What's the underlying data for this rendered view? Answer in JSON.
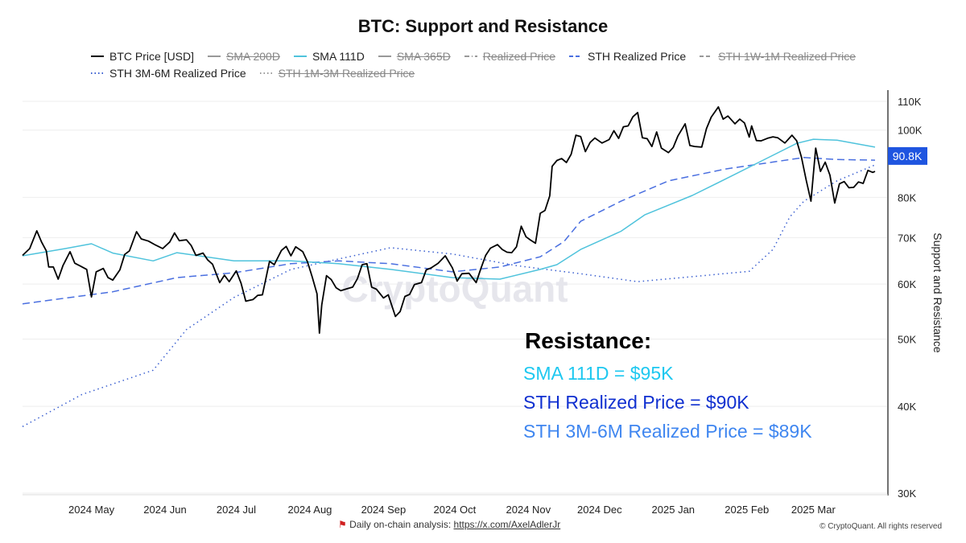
{
  "chart_data": {
    "type": "line",
    "title": "BTC: Support and Resistance",
    "ylabel": "Support and Resistance",
    "yscale": "log",
    "ylim": [
      30000,
      115000
    ],
    "xlim": [
      "2024-04-02",
      "2025-03-31"
    ],
    "grid": "horizontal",
    "legend_position": "top",
    "y_ticks": [
      {
        "v": 30000,
        "label": "30K"
      },
      {
        "v": 40000,
        "label": "40K"
      },
      {
        "v": 50000,
        "label": "50K"
      },
      {
        "v": 60000,
        "label": "60K"
      },
      {
        "v": 70000,
        "label": "70K"
      },
      {
        "v": 80000,
        "label": "80K"
      },
      {
        "v": 100000,
        "label": "100K"
      },
      {
        "v": 110000,
        "label": "110K"
      }
    ],
    "x_ticks": [
      {
        "d": "2024-05-01",
        "label": "2024 May"
      },
      {
        "d": "2024-06-01",
        "label": "2024 Jun"
      },
      {
        "d": "2024-07-01",
        "label": "2024 Jul"
      },
      {
        "d": "2024-08-01",
        "label": "2024 Aug"
      },
      {
        "d": "2024-09-01",
        "label": "2024 Sep"
      },
      {
        "d": "2024-10-01",
        "label": "2024 Oct"
      },
      {
        "d": "2024-11-01",
        "label": "2024 Nov"
      },
      {
        "d": "2024-12-01",
        "label": "2024 Dec"
      },
      {
        "d": "2025-01-01",
        "label": "2025 Jan"
      },
      {
        "d": "2025-02-01",
        "label": "2025 Feb"
      },
      {
        "d": "2025-03-01",
        "label": "2025 Mar"
      }
    ],
    "current_value_badge": {
      "value": 90800,
      "label": "90.8K",
      "color": "#1f55e0"
    },
    "series": [
      {
        "name": "BTC Price [USD]",
        "color": "#000000",
        "style": "solid",
        "visible": true,
        "points": [
          [
            "2024-04-02",
            66000
          ],
          [
            "2024-04-05",
            67500
          ],
          [
            "2024-04-08",
            71600
          ],
          [
            "2024-04-10",
            69000
          ],
          [
            "2024-04-12",
            67000
          ],
          [
            "2024-04-13",
            63500
          ],
          [
            "2024-04-15",
            63500
          ],
          [
            "2024-04-17",
            61000
          ],
          [
            "2024-04-19",
            63800
          ],
          [
            "2024-04-22",
            66800
          ],
          [
            "2024-04-24",
            64300
          ],
          [
            "2024-04-26",
            63800
          ],
          [
            "2024-04-29",
            63000
          ],
          [
            "2024-05-01",
            57500
          ],
          [
            "2024-05-03",
            62500
          ],
          [
            "2024-05-06",
            63200
          ],
          [
            "2024-05-08",
            61300
          ],
          [
            "2024-05-10",
            60800
          ],
          [
            "2024-05-13",
            62900
          ],
          [
            "2024-05-15",
            66200
          ],
          [
            "2024-05-17",
            67000
          ],
          [
            "2024-05-20",
            71400
          ],
          [
            "2024-05-22",
            69700
          ],
          [
            "2024-05-25",
            69200
          ],
          [
            "2024-05-28",
            68300
          ],
          [
            "2024-05-31",
            67500
          ],
          [
            "2024-06-03",
            69000
          ],
          [
            "2024-06-05",
            71100
          ],
          [
            "2024-06-07",
            69300
          ],
          [
            "2024-06-10",
            69500
          ],
          [
            "2024-06-12",
            68200
          ],
          [
            "2024-06-14",
            66000
          ],
          [
            "2024-06-17",
            66500
          ],
          [
            "2024-06-19",
            65000
          ],
          [
            "2024-06-21",
            64100
          ],
          [
            "2024-06-24",
            60300
          ],
          [
            "2024-06-26",
            61800
          ],
          [
            "2024-06-28",
            60500
          ],
          [
            "2024-07-01",
            62700
          ],
          [
            "2024-07-03",
            60200
          ],
          [
            "2024-07-05",
            56700
          ],
          [
            "2024-07-08",
            57000
          ],
          [
            "2024-07-10",
            57800
          ],
          [
            "2024-07-12",
            57900
          ],
          [
            "2024-07-15",
            64700
          ],
          [
            "2024-07-17",
            64000
          ],
          [
            "2024-07-20",
            67100
          ],
          [
            "2024-07-22",
            68000
          ],
          [
            "2024-07-24",
            65900
          ],
          [
            "2024-07-26",
            67900
          ],
          [
            "2024-07-29",
            66800
          ],
          [
            "2024-07-31",
            64600
          ],
          [
            "2024-08-02",
            61400
          ],
          [
            "2024-08-04",
            58100
          ],
          [
            "2024-08-05",
            51000
          ],
          [
            "2024-08-06",
            56000
          ],
          [
            "2024-08-08",
            61700
          ],
          [
            "2024-08-10",
            60900
          ],
          [
            "2024-08-12",
            59300
          ],
          [
            "2024-08-14",
            58700
          ],
          [
            "2024-08-16",
            59000
          ],
          [
            "2024-08-19",
            59400
          ],
          [
            "2024-08-21",
            61100
          ],
          [
            "2024-08-23",
            64000
          ],
          [
            "2024-08-25",
            64200
          ],
          [
            "2024-08-27",
            59400
          ],
          [
            "2024-08-29",
            59000
          ],
          [
            "2024-09-01",
            57300
          ],
          [
            "2024-09-03",
            57900
          ],
          [
            "2024-09-06",
            53900
          ],
          [
            "2024-09-08",
            54800
          ],
          [
            "2024-09-10",
            57600
          ],
          [
            "2024-09-12",
            58000
          ],
          [
            "2024-09-14",
            59900
          ],
          [
            "2024-09-17",
            60300
          ],
          [
            "2024-09-19",
            62900
          ],
          [
            "2024-09-21",
            63300
          ],
          [
            "2024-09-24",
            64300
          ],
          [
            "2024-09-27",
            65900
          ],
          [
            "2024-09-30",
            63300
          ],
          [
            "2024-10-02",
            60600
          ],
          [
            "2024-10-04",
            62100
          ],
          [
            "2024-10-07",
            62200
          ],
          [
            "2024-10-10",
            60300
          ],
          [
            "2024-10-12",
            63200
          ],
          [
            "2024-10-14",
            66000
          ],
          [
            "2024-10-16",
            67600
          ],
          [
            "2024-10-19",
            68400
          ],
          [
            "2024-10-21",
            67300
          ],
          [
            "2024-10-23",
            66700
          ],
          [
            "2024-10-25",
            66600
          ],
          [
            "2024-10-27",
            67900
          ],
          [
            "2024-10-29",
            72700
          ],
          [
            "2024-10-31",
            70200
          ],
          [
            "2024-11-02",
            69400
          ],
          [
            "2024-11-04",
            68700
          ],
          [
            "2024-11-06",
            75900
          ],
          [
            "2024-11-08",
            76600
          ],
          [
            "2024-11-10",
            80400
          ],
          [
            "2024-11-11",
            88700
          ],
          [
            "2024-11-13",
            90400
          ],
          [
            "2024-11-15",
            91000
          ],
          [
            "2024-11-17",
            89800
          ],
          [
            "2024-11-19",
            92300
          ],
          [
            "2024-11-21",
            98300
          ],
          [
            "2024-11-23",
            97900
          ],
          [
            "2024-11-25",
            93100
          ],
          [
            "2024-11-27",
            96000
          ],
          [
            "2024-11-29",
            97400
          ],
          [
            "2024-12-02",
            95800
          ],
          [
            "2024-12-05",
            96900
          ],
          [
            "2024-12-07",
            99800
          ],
          [
            "2024-12-09",
            97300
          ],
          [
            "2024-12-11",
            101100
          ],
          [
            "2024-12-13",
            101400
          ],
          [
            "2024-12-15",
            104500
          ],
          [
            "2024-12-17",
            106000
          ],
          [
            "2024-12-19",
            97500
          ],
          [
            "2024-12-21",
            97200
          ],
          [
            "2024-12-23",
            94700
          ],
          [
            "2024-12-25",
            99400
          ],
          [
            "2024-12-27",
            94200
          ],
          [
            "2024-12-30",
            92800
          ],
          [
            "2025-01-01",
            94400
          ],
          [
            "2025-01-03",
            98100
          ],
          [
            "2025-01-06",
            102100
          ],
          [
            "2025-01-08",
            95000
          ],
          [
            "2025-01-10",
            94700
          ],
          [
            "2025-01-13",
            94500
          ],
          [
            "2025-01-15",
            100500
          ],
          [
            "2025-01-17",
            104400
          ],
          [
            "2025-01-20",
            108000
          ],
          [
            "2025-01-22",
            103700
          ],
          [
            "2025-01-24",
            104800
          ],
          [
            "2025-01-27",
            102100
          ],
          [
            "2025-01-29",
            103700
          ],
          [
            "2025-01-31",
            102400
          ],
          [
            "2025-02-02",
            97700
          ],
          [
            "2025-02-03",
            101400
          ],
          [
            "2025-02-05",
            96600
          ],
          [
            "2025-02-07",
            96500
          ],
          [
            "2025-02-10",
            97400
          ],
          [
            "2025-02-12",
            97800
          ],
          [
            "2025-02-14",
            97500
          ],
          [
            "2025-02-17",
            95800
          ],
          [
            "2025-02-20",
            98300
          ],
          [
            "2025-02-22",
            96500
          ],
          [
            "2025-02-24",
            91400
          ],
          [
            "2025-02-26",
            84700
          ],
          [
            "2025-02-28",
            79000
          ],
          [
            "2025-03-02",
            94200
          ],
          [
            "2025-03-04",
            87200
          ],
          [
            "2025-03-06",
            89900
          ],
          [
            "2025-03-08",
            86100
          ],
          [
            "2025-03-10",
            78500
          ],
          [
            "2025-03-12",
            83700
          ],
          [
            "2025-03-14",
            84300
          ],
          [
            "2025-03-16",
            82600
          ],
          [
            "2025-03-18",
            82700
          ],
          [
            "2025-03-20",
            84200
          ],
          [
            "2025-03-22",
            83800
          ],
          [
            "2025-03-24",
            87500
          ],
          [
            "2025-03-26",
            86900
          ],
          [
            "2025-03-27",
            87200
          ]
        ]
      },
      {
        "name": "SMA 200D",
        "color": "#888888",
        "style": "solid",
        "visible": false
      },
      {
        "name": "SMA 111D",
        "color": "#4fc3dc",
        "style": "solid",
        "visible": true,
        "points": [
          [
            "2024-04-02",
            65900
          ],
          [
            "2024-04-20",
            67500
          ],
          [
            "2024-05-01",
            68600
          ],
          [
            "2024-05-10",
            66500
          ],
          [
            "2024-05-27",
            64800
          ],
          [
            "2024-06-06",
            66600
          ],
          [
            "2024-06-30",
            64800
          ],
          [
            "2024-07-24",
            64800
          ],
          [
            "2024-08-13",
            64200
          ],
          [
            "2024-09-04",
            63000
          ],
          [
            "2024-09-30",
            61300
          ],
          [
            "2024-10-20",
            61000
          ],
          [
            "2024-11-06",
            63000
          ],
          [
            "2024-11-13",
            64000
          ],
          [
            "2024-11-23",
            67300
          ],
          [
            "2024-12-10",
            71500
          ],
          [
            "2024-12-20",
            75500
          ],
          [
            "2025-01-09",
            80500
          ],
          [
            "2025-01-23",
            85000
          ],
          [
            "2025-02-12",
            92000
          ],
          [
            "2025-02-22",
            95700
          ],
          [
            "2025-03-01",
            97000
          ],
          [
            "2025-03-11",
            96700
          ],
          [
            "2025-03-27",
            94500
          ]
        ]
      },
      {
        "name": "SMA 365D",
        "color": "#888888",
        "style": "solid",
        "visible": false
      },
      {
        "name": "Realized Price",
        "color": "#888888",
        "style": "dashdot",
        "visible": false
      },
      {
        "name": "STH Realized Price",
        "color": "#4a6fe0",
        "style": "dashed",
        "visible": true,
        "points": [
          [
            "2024-04-02",
            56200
          ],
          [
            "2024-05-10",
            58500
          ],
          [
            "2024-06-06",
            61300
          ],
          [
            "2024-06-30",
            62300
          ],
          [
            "2024-07-24",
            64200
          ],
          [
            "2024-08-13",
            64800
          ],
          [
            "2024-09-04",
            64200
          ],
          [
            "2024-09-30",
            62500
          ],
          [
            "2024-10-20",
            63500
          ],
          [
            "2024-11-06",
            65700
          ],
          [
            "2024-11-16",
            69100
          ],
          [
            "2024-11-23",
            73900
          ],
          [
            "2024-12-10",
            79000
          ],
          [
            "2024-12-30",
            84500
          ],
          [
            "2025-01-23",
            87900
          ],
          [
            "2025-02-25",
            91300
          ],
          [
            "2025-03-11",
            90700
          ],
          [
            "2025-03-27",
            90500
          ]
        ]
      },
      {
        "name": "STH 1W-1M Realized Price",
        "color": "#888888",
        "style": "dashed",
        "visible": false
      },
      {
        "name": "STH 3M-6M Realized Price",
        "color": "#3a5fd0",
        "style": "dotted",
        "visible": true,
        "points": [
          [
            "2024-04-02",
            37400
          ],
          [
            "2024-04-27",
            41600
          ],
          [
            "2024-05-27",
            45100
          ],
          [
            "2024-06-10",
            51600
          ],
          [
            "2024-06-30",
            57400
          ],
          [
            "2024-07-24",
            63000
          ],
          [
            "2024-08-13",
            65200
          ],
          [
            "2024-09-04",
            67700
          ],
          [
            "2024-09-30",
            66300
          ],
          [
            "2024-10-27",
            63800
          ],
          [
            "2024-11-23",
            62100
          ],
          [
            "2024-12-17",
            60500
          ],
          [
            "2025-01-09",
            61500
          ],
          [
            "2025-02-02",
            62600
          ],
          [
            "2025-02-12",
            67300
          ],
          [
            "2025-02-19",
            74900
          ],
          [
            "2025-02-25",
            79000
          ],
          [
            "2025-03-11",
            84500
          ],
          [
            "2025-03-27",
            89100
          ]
        ]
      },
      {
        "name": "STH 1M-3M Realized Price",
        "color": "#888888",
        "style": "dotted",
        "visible": false
      }
    ],
    "annotations": {
      "heading": "Resistance:",
      "lines": [
        {
          "text": "SMA 111D = $95K",
          "color": "#1ec8f0"
        },
        {
          "text": "STH Realized Price = $90K",
          "color": "#1030d0"
        },
        {
          "text": "STH 3M-6M Realized Price = $89K",
          "color": "#3f86f0"
        }
      ]
    },
    "watermark": "CryptoQuant"
  },
  "footer": {
    "analysis_label": "Daily on-chain analysis:",
    "analysis_link": "https://x.com/AxelAdlerJr",
    "copyright": "© CryptoQuant. All rights reserved"
  }
}
